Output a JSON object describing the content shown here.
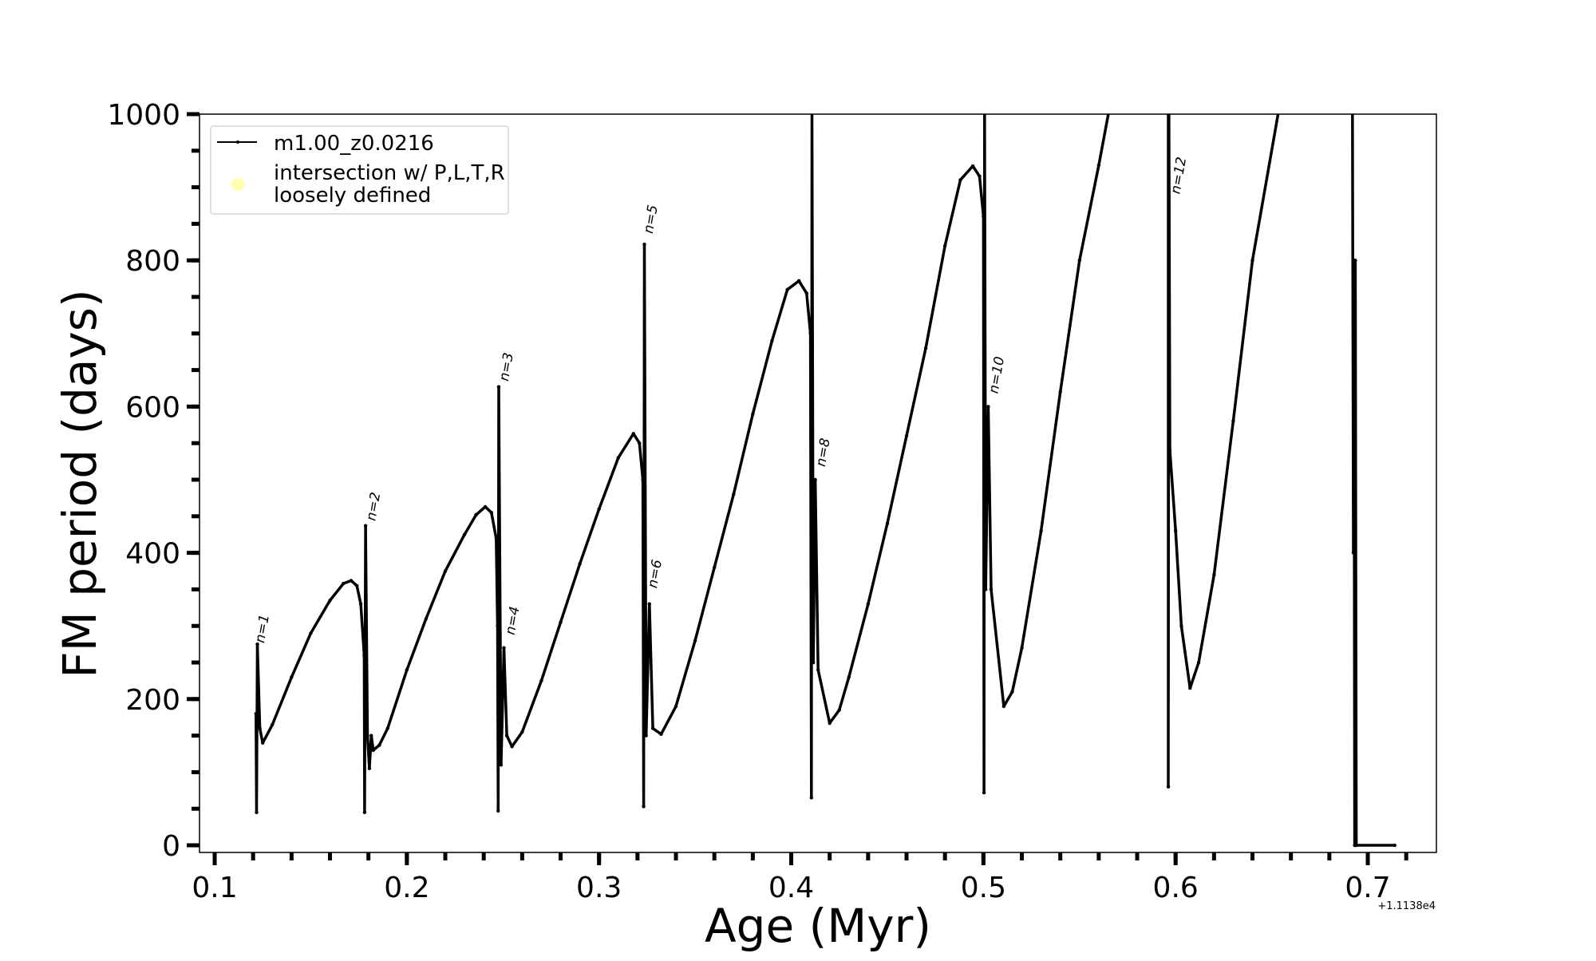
{
  "chart_data": {
    "type": "line",
    "title": "",
    "xlabel": "Age (Myr)",
    "ylabel": "FM period (days)",
    "x_offset_text": "+1.1138e4",
    "xlim": [
      0.0921,
      0.7357
    ],
    "ylim": [
      -9.8,
      1000
    ],
    "grid": false,
    "legend_placement": "top-left",
    "x_ticks": [
      0.1,
      0.2,
      0.3,
      0.4,
      0.5,
      0.6,
      0.7
    ],
    "x_tick_labels": [
      "0.1",
      "0.2",
      "0.3",
      "0.4",
      "0.5",
      "0.6",
      "0.7"
    ],
    "x_minor_step": 0.02,
    "y_ticks": [
      0,
      200,
      400,
      600,
      800,
      1000
    ],
    "y_tick_labels": [
      "0",
      "200",
      "400",
      "600",
      "800",
      "1000"
    ],
    "y_minor_step": 50,
    "legend": [
      {
        "label": "m1.00_z0.0216",
        "style": "line-marker",
        "color": "#000000"
      },
      {
        "label": "intersection w/ P,L,T,R\nloosely defined",
        "label_lines": [
          "intersection w/ P,L,T,R",
          "loosely defined"
        ],
        "style": "circle",
        "color": "#ffffb0"
      }
    ],
    "series": [
      {
        "name": "m1.00_z0.0216",
        "color": "#000000",
        "points": [
          [
            0.1215,
            180
          ],
          [
            0.1218,
            45
          ],
          [
            0.1222,
            275
          ],
          [
            0.1235,
            160
          ],
          [
            0.125,
            140
          ],
          [
            0.13,
            165
          ],
          [
            0.14,
            230
          ],
          [
            0.15,
            290
          ],
          [
            0.16,
            335
          ],
          [
            0.167,
            358
          ],
          [
            0.171,
            362
          ],
          [
            0.174,
            355
          ],
          [
            0.176,
            330
          ],
          [
            0.1778,
            260
          ],
          [
            0.178,
            45
          ],
          [
            0.1785,
            437
          ],
          [
            0.1795,
            150
          ],
          [
            0.1805,
            105
          ],
          [
            0.1815,
            150
          ],
          [
            0.1825,
            130
          ],
          [
            0.1857,
            137
          ],
          [
            0.19,
            160
          ],
          [
            0.2,
            240
          ],
          [
            0.21,
            310
          ],
          [
            0.22,
            375
          ],
          [
            0.23,
            425
          ],
          [
            0.236,
            452
          ],
          [
            0.2408,
            463
          ],
          [
            0.244,
            455
          ],
          [
            0.2465,
            420
          ],
          [
            0.2472,
            300
          ],
          [
            0.2475,
            47
          ],
          [
            0.2478,
            627
          ],
          [
            0.249,
            110
          ],
          [
            0.2505,
            270
          ],
          [
            0.252,
            150
          ],
          [
            0.2547,
            135
          ],
          [
            0.26,
            155
          ],
          [
            0.27,
            225
          ],
          [
            0.28,
            305
          ],
          [
            0.29,
            385
          ],
          [
            0.3,
            460
          ],
          [
            0.31,
            530
          ],
          [
            0.3179,
            563
          ],
          [
            0.321,
            550
          ],
          [
            0.3228,
            500
          ],
          [
            0.3232,
            53
          ],
          [
            0.3236,
            822
          ],
          [
            0.3245,
            150
          ],
          [
            0.3262,
            330
          ],
          [
            0.328,
            160
          ],
          [
            0.3323,
            152
          ],
          [
            0.34,
            190
          ],
          [
            0.35,
            280
          ],
          [
            0.36,
            380
          ],
          [
            0.37,
            480
          ],
          [
            0.38,
            590
          ],
          [
            0.39,
            690
          ],
          [
            0.398,
            760
          ],
          [
            0.404,
            772
          ],
          [
            0.408,
            755
          ],
          [
            0.41,
            700
          ],
          [
            0.4105,
            65
          ],
          [
            0.4108,
            1010
          ],
          [
            0.4115,
            250
          ],
          [
            0.4125,
            500
          ],
          [
            0.414,
            240
          ],
          [
            0.42,
            167
          ],
          [
            0.425,
            185
          ],
          [
            0.43,
            230
          ],
          [
            0.44,
            330
          ],
          [
            0.45,
            440
          ],
          [
            0.46,
            560
          ],
          [
            0.47,
            680
          ],
          [
            0.48,
            820
          ],
          [
            0.488,
            910
          ],
          [
            0.4945,
            929
          ],
          [
            0.498,
            915
          ],
          [
            0.5,
            860
          ],
          [
            0.5003,
            72
          ],
          [
            0.5006,
            1010
          ],
          [
            0.5012,
            350
          ],
          [
            0.5025,
            600
          ],
          [
            0.504,
            350
          ],
          [
            0.5106,
            190
          ],
          [
            0.515,
            210
          ],
          [
            0.52,
            270
          ],
          [
            0.53,
            430
          ],
          [
            0.54,
            620
          ],
          [
            0.55,
            800
          ],
          [
            0.56,
            930
          ],
          [
            0.5657,
            1010
          ],
          [
            0.5962,
            1010
          ],
          [
            0.5962,
            80
          ],
          [
            0.5965,
            1010
          ],
          [
            0.597,
            540
          ],
          [
            0.6,
            430
          ],
          [
            0.603,
            300
          ],
          [
            0.6075,
            215
          ],
          [
            0.612,
            250
          ],
          [
            0.62,
            370
          ],
          [
            0.63,
            580
          ],
          [
            0.64,
            800
          ],
          [
            0.654,
            1010
          ],
          [
            0.692,
            1010
          ],
          [
            0.6925,
            400
          ],
          [
            0.6928,
            800
          ],
          [
            0.6932,
            0
          ],
          [
            0.6935,
            800
          ],
          [
            0.694,
            0
          ],
          [
            0.714,
            0
          ]
        ]
      }
    ],
    "annotations": [
      {
        "text": "n=1",
        "x": 0.1257,
        "y": 276
      },
      {
        "text": "n=2",
        "x": 0.1835,
        "y": 443
      },
      {
        "text": "n=3",
        "x": 0.2527,
        "y": 634
      },
      {
        "text": "n=4",
        "x": 0.2559,
        "y": 287
      },
      {
        "text": "n=5",
        "x": 0.3278,
        "y": 836
      },
      {
        "text": "n=6",
        "x": 0.33,
        "y": 351
      },
      {
        "text": "n=8",
        "x": 0.4175,
        "y": 517
      },
      {
        "text": "n=10",
        "x": 0.5074,
        "y": 617
      },
      {
        "text": "n=12",
        "x": 0.6021,
        "y": 890
      }
    ]
  }
}
